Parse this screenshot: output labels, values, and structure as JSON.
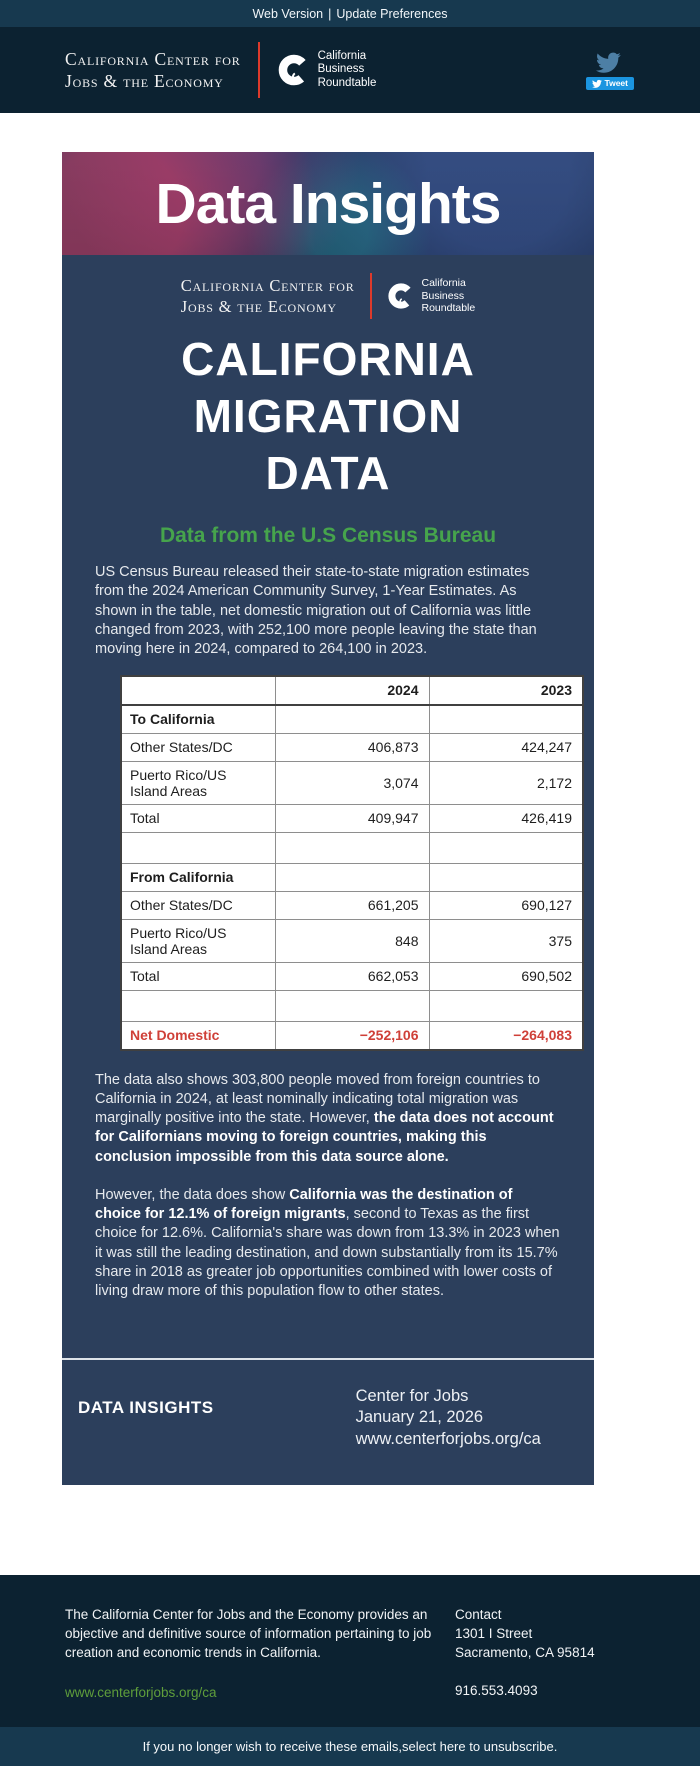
{
  "colors": {
    "card_navy": "#2c3f5c",
    "header_navy": "#0c2231",
    "bar_teal": "#17394f",
    "green_heading": "#46a44c",
    "alert_red": "#cf4038",
    "logo_divider_red": "#dd3a2b",
    "tweet_blue": "#1b95e0",
    "footer_link_green": "#5f9e3b"
  },
  "topbar": {
    "links": [
      "Web Version",
      "Update Preferences"
    ],
    "separator": "|"
  },
  "header": {
    "ccje_line1": "California Center for",
    "ccje_line2": "Jobs & the Economy",
    "cbrt_line1": "California",
    "cbrt_line2": "Business",
    "cbrt_line3": "Roundtable",
    "tweet_label": "Tweet"
  },
  "hero": {
    "title": "Data Insights"
  },
  "article": {
    "title_line1": "CALIFORNIA",
    "title_line2": "MIGRATION",
    "title_line3": "DATA",
    "subtitle": "Data from the U.S Census Bureau",
    "para1": [
      {
        "t": "US Census Bureau released their state-to-state migration estimates from the 2024 American Community Survey, 1-Year Estimates. As shown in the table, net domestic migration out of California was little changed from 2023, with 252,100 more people leaving the state than moving here in 2024, compared to 264,100 in 2023.",
        "b": false
      }
    ],
    "para2": [
      {
        "t": "The data also shows 303,800 people moved from foreign countries to California in 2024, at least nominally indicating total migration was marginally positive into the state. However, ",
        "b": false
      },
      {
        "t": "the data does not account for Californians moving to foreign countries, making this conclusion impossible from this data source alone.",
        "b": true
      }
    ],
    "para3": [
      {
        "t": "However, the data does show ",
        "b": false
      },
      {
        "t": "California was the destination of choice for 12.1% of foreign migrants",
        "b": true
      },
      {
        "t": ", second to Texas as the first choice for 12.6%.  California's share was down from 13.3% in 2023 when it was still the leading destination, and down substantially from its 15.7% share in 2018 as greater job opportunities combined with lower costs of living draw more of this population flow to other states.",
        "b": false
      }
    ]
  },
  "chart_data": {
    "type": "table",
    "title": "California state-to-state migration estimates",
    "columns": [
      "",
      "2024",
      "2023"
    ],
    "rows": [
      {
        "label": "To California",
        "bold": true,
        "v2024": "",
        "v2023": ""
      },
      {
        "label": "Other States/DC",
        "v2024": "406,873",
        "v2023": "424,247"
      },
      {
        "label": "Puerto Rico/US Island Areas",
        "v2024": "3,074",
        "v2023": "2,172"
      },
      {
        "label": "Total",
        "v2024": "409,947",
        "v2023": "426,419"
      },
      {
        "label": "",
        "v2024": "",
        "v2023": "",
        "spacer": true
      },
      {
        "label": "From California",
        "bold": true,
        "v2024": "",
        "v2023": ""
      },
      {
        "label": "Other States/DC",
        "v2024": "661,205",
        "v2023": "690,127"
      },
      {
        "label": "Puerto Rico/US Island Areas",
        "v2024": "848",
        "v2023": "375"
      },
      {
        "label": "Total",
        "v2024": "662,053",
        "v2023": "690,502"
      },
      {
        "label": "",
        "v2024": "",
        "v2023": "",
        "spacer": true
      },
      {
        "label": "Net Domestic",
        "bold": true,
        "accent": true,
        "v2024": "−252,106",
        "v2023": "−264,083"
      }
    ]
  },
  "card_footer": {
    "brand": "DATA INSIGHTS",
    "org": "Center for Jobs",
    "date": "January 21, 2026",
    "url": "www.centerforjobs.org/ca"
  },
  "footer": {
    "about": "The California Center for Jobs and the Economy provides an objective and definitive source of information pertaining to job creation and economic trends in California.",
    "link": "www.centerforjobs.org/ca",
    "contact_title": "Contact",
    "address_line1": "1301 I Street",
    "address_line2": "Sacramento, CA 95814",
    "phone": "916.553.4093"
  },
  "unsubscribe": {
    "prefix": "If you no longer wish to receive these emails, ",
    "link": "select here to unsubscribe."
  }
}
